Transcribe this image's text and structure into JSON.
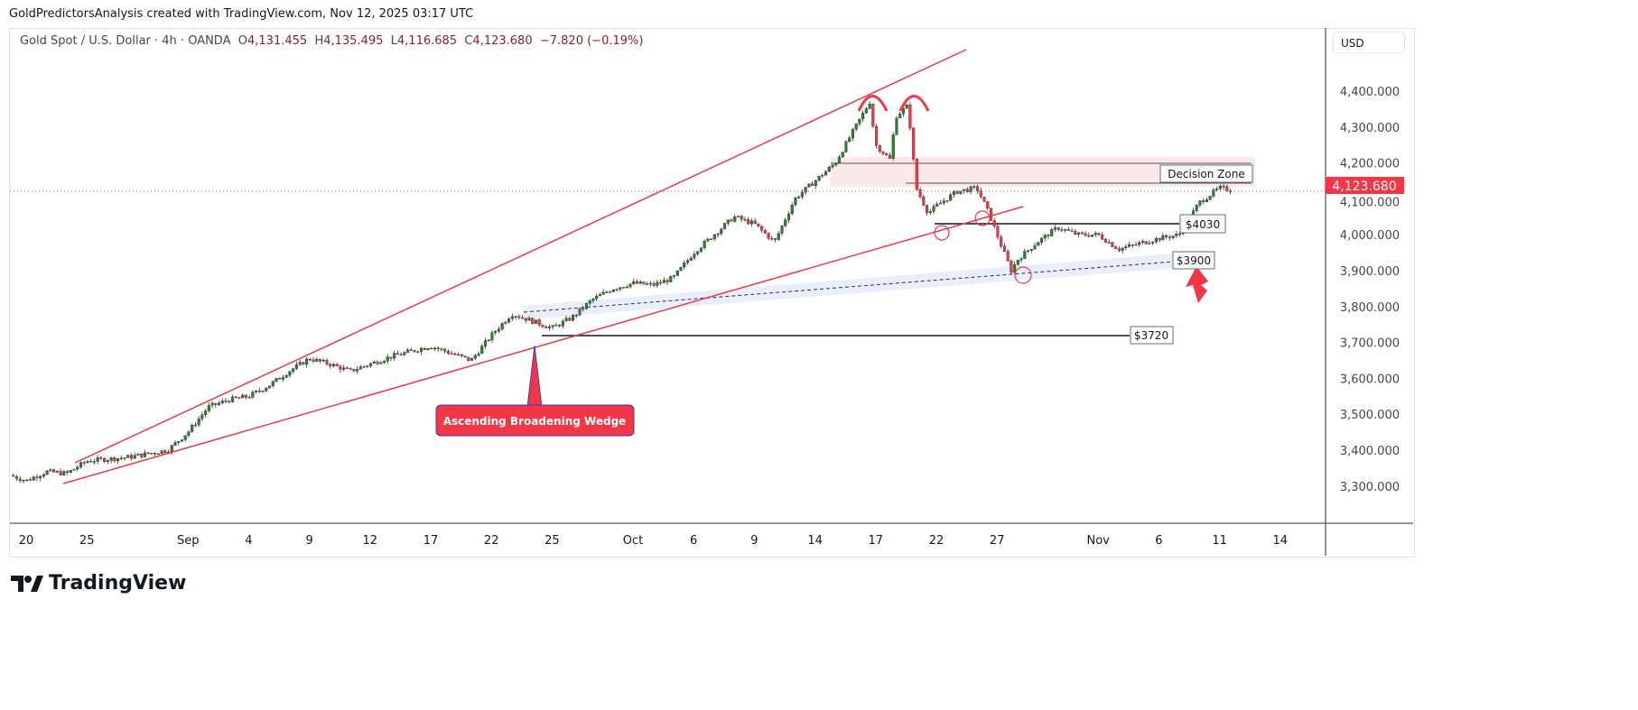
{
  "header": {
    "attribution": "GoldPredictorsAnalysis created with TradingView.com, Nov 12, 2025 03:17 UTC"
  },
  "legend": {
    "symbol": "Gold Spot / U.S. Dollar · 4h · OANDA",
    "open_label": "O",
    "open": "4,131.455",
    "high_label": "H",
    "high": "4,135.495",
    "low_label": "L",
    "low": "4,116.685",
    "close_label": "C",
    "close": "4,123.680",
    "change": "−7.820 (−0.19%)"
  },
  "currency": "USD",
  "logo": "TradingView",
  "colors": {
    "up": "#089981",
    "up_body": "#2e7d32",
    "down": "#f23645",
    "accent": "#f23645"
  },
  "chart_data": {
    "type": "candlestick",
    "title": "Gold Spot / U.S. Dollar · 4h · OANDA",
    "ylim": [
      3200,
      4500
    ],
    "y_ticks": [
      "4,400.000",
      "4,300.000",
      "4,200.000",
      "4,100.000",
      "4,000.000",
      "3,900.000",
      "3,800.000",
      "3,700.000",
      "3,600.000",
      "3,500.000",
      "3,400.000",
      "3,300.000"
    ],
    "y_tick_values": [
      4400,
      4300,
      4200,
      4100,
      4000,
      3900,
      3800,
      3700,
      3600,
      3500,
      3400,
      3300
    ],
    "x_ticks": [
      {
        "label": "20",
        "day": 0
      },
      {
        "label": "25",
        "day": 3
      },
      {
        "label": "Sep",
        "day": 8
      },
      {
        "label": "4",
        "day": 11
      },
      {
        "label": "9",
        "day": 14
      },
      {
        "label": "12",
        "day": 17
      },
      {
        "label": "17",
        "day": 20
      },
      {
        "label": "22",
        "day": 23
      },
      {
        "label": "25",
        "day": 26
      },
      {
        "label": "Oct",
        "day": 30
      },
      {
        "label": "6",
        "day": 33
      },
      {
        "label": "9",
        "day": 36
      },
      {
        "label": "14",
        "day": 39
      },
      {
        "label": "17",
        "day": 42
      },
      {
        "label": "22",
        "day": 45
      },
      {
        "label": "27",
        "day": 48
      },
      {
        "label": "Nov",
        "day": 53
      },
      {
        "label": "6",
        "day": 56
      },
      {
        "label": "11",
        "day": 59
      },
      {
        "label": "14",
        "day": 62
      }
    ],
    "price_path": [
      [
        -0.8,
        3330
      ],
      [
        0,
        3315
      ],
      [
        1,
        3340
      ],
      [
        2,
        3335
      ],
      [
        3,
        3370
      ],
      [
        5,
        3380
      ],
      [
        7,
        3400
      ],
      [
        8,
        3450
      ],
      [
        9,
        3520
      ],
      [
        10,
        3540
      ],
      [
        11,
        3550
      ],
      [
        12,
        3580
      ],
      [
        13,
        3620
      ],
      [
        14,
        3655
      ],
      [
        15,
        3640
      ],
      [
        16,
        3620
      ],
      [
        17,
        3640
      ],
      [
        18,
        3660
      ],
      [
        20,
        3690
      ],
      [
        21,
        3670
      ],
      [
        22,
        3650
      ],
      [
        23,
        3720
      ],
      [
        24,
        3780
      ],
      [
        25,
        3760
      ],
      [
        26,
        3740
      ],
      [
        27,
        3770
      ],
      [
        28,
        3820
      ],
      [
        29,
        3850
      ],
      [
        30,
        3865
      ],
      [
        31,
        3860
      ],
      [
        32,
        3880
      ],
      [
        33,
        3950
      ],
      [
        34,
        4000
      ],
      [
        35,
        4050
      ],
      [
        36,
        4030
      ],
      [
        37,
        3980
      ],
      [
        38,
        4100
      ],
      [
        39,
        4150
      ],
      [
        40,
        4200
      ],
      [
        41,
        4300
      ],
      [
        41.7,
        4370
      ],
      [
        42,
        4250
      ],
      [
        42.7,
        4210
      ],
      [
        43,
        4330
      ],
      [
        43.6,
        4360
      ],
      [
        44,
        4130
      ],
      [
        44.6,
        4060
      ],
      [
        45,
        4080
      ],
      [
        46,
        4120
      ],
      [
        47,
        4130
      ],
      [
        47.6,
        4060
      ],
      [
        48,
        4000
      ],
      [
        48.7,
        3900
      ],
      [
        49,
        3930
      ],
      [
        50,
        3980
      ],
      [
        51,
        4020
      ],
      [
        52,
        4000
      ],
      [
        53,
        4000
      ],
      [
        54,
        3960
      ],
      [
        55,
        3975
      ],
      [
        56,
        3990
      ],
      [
        57,
        4000
      ],
      [
        58,
        4090
      ],
      [
        59,
        4130
      ],
      [
        59.6,
        4124
      ]
    ],
    "current_price": "4,123.680",
    "annotations": {
      "pattern_label": "Ascending Broadening Wedge",
      "decision_zone": "Decision Zone",
      "levels": [
        {
          "label": "$4030",
          "value": 4030
        },
        {
          "label": "$3900",
          "value": 3900
        },
        {
          "label": "$3720",
          "value": 3720
        }
      ]
    }
  }
}
